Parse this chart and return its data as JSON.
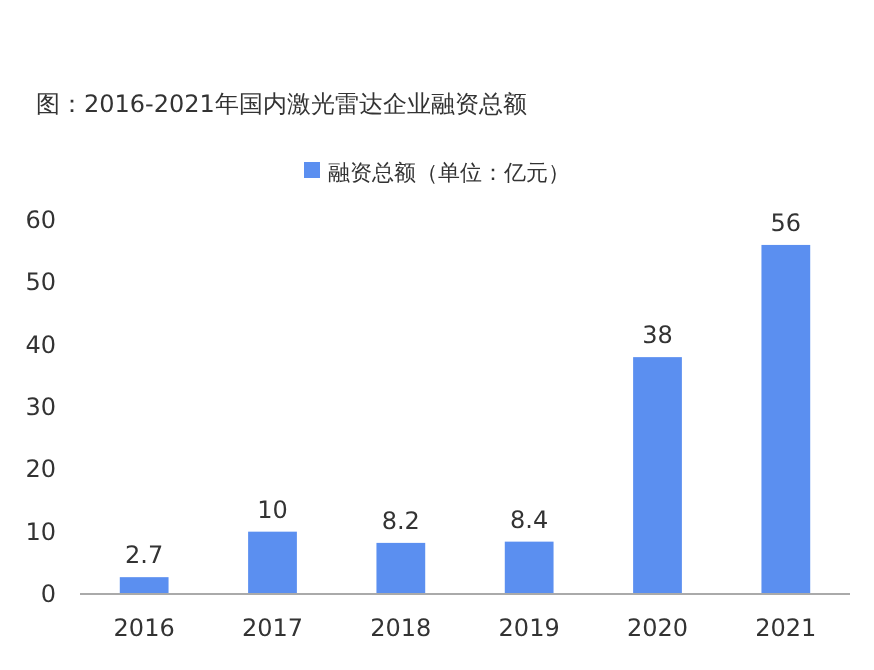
{
  "chart_data": {
    "type": "bar",
    "title": "图：2016-2021年国内激光雷达企业融资总额",
    "categories": [
      "2016",
      "2017",
      "2018",
      "2019",
      "2020",
      "2021"
    ],
    "series": [
      {
        "name": "融资总额（单位：亿元）",
        "color": "#5b8ff0",
        "values": [
          2.7,
          10,
          8.2,
          8.4,
          38,
          56
        ]
      }
    ],
    "ylim": [
      0,
      60
    ],
    "yticks": [
      0,
      10,
      20,
      30,
      40,
      50,
      60
    ],
    "grid": false,
    "legend": "top",
    "data_labels": true
  }
}
